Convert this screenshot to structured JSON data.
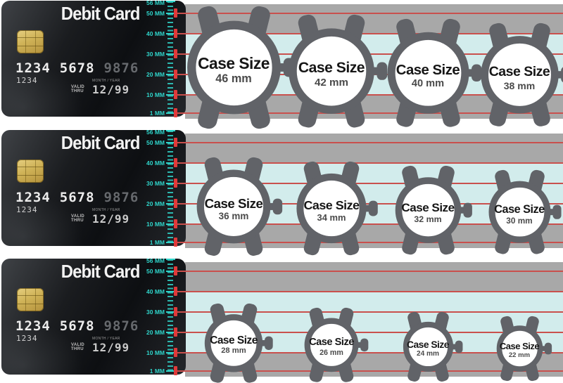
{
  "title": "Watch case size comparison against a debit card",
  "colors": {
    "band_gray": "#a8a8a8",
    "band_cyan": "#d2ecec",
    "line_red": "#c9504d",
    "marker_red": "#e03a3a",
    "ruler_cyan": "#2fd4ca",
    "watch_gray": "#616368",
    "card_black": "#17191c",
    "dial_white": "#ffffff"
  },
  "card": {
    "title": "Debit Card",
    "number_groups": [
      "1234",
      "5678",
      "9876"
    ],
    "sub_number": "1234",
    "valid_line1": "VALID",
    "valid_line2": "THRU",
    "month_year_label": "MONTH / YEAR",
    "expiry": "12/99"
  },
  "ruler": {
    "unit": "MM",
    "marks": [
      {
        "text": "56 MM",
        "mm": 56,
        "line": false
      },
      {
        "text": "50 MM",
        "mm": 50,
        "line": true
      },
      {
        "text": "40 MM",
        "mm": 40,
        "line": true
      },
      {
        "text": "30 MM",
        "mm": 30,
        "line": true
      },
      {
        "text": "20 MM",
        "mm": 20,
        "line": true
      },
      {
        "text": "10 MM",
        "mm": 10,
        "line": true
      },
      {
        "text": "1 MM",
        "mm": 1,
        "line": true
      }
    ]
  },
  "rows": [
    {
      "watches": [
        {
          "label": "Case Size",
          "size_label": "46 mm",
          "mm": 46
        },
        {
          "label": "Case Size",
          "size_label": "42 mm",
          "mm": 42
        },
        {
          "label": "Case Size",
          "size_label": "40 mm",
          "mm": 40
        },
        {
          "label": "Case Size",
          "size_label": "38 mm",
          "mm": 38
        }
      ]
    },
    {
      "watches": [
        {
          "label": "Case Size",
          "size_label": "36 mm",
          "mm": 36
        },
        {
          "label": "Case Size",
          "size_label": "34 mm",
          "mm": 34
        },
        {
          "label": "Case Size",
          "size_label": "32 mm",
          "mm": 32
        },
        {
          "label": "Case Size",
          "size_label": "30 mm",
          "mm": 30
        }
      ]
    },
    {
      "watches": [
        {
          "label": "Case Size",
          "size_label": "28 mm",
          "mm": 28
        },
        {
          "label": "Case Size",
          "size_label": "26 mm",
          "mm": 26
        },
        {
          "label": "Case Size",
          "size_label": "24 mm",
          "mm": 24
        },
        {
          "label": "Case Size",
          "size_label": "22 mm",
          "mm": 22
        }
      ]
    }
  ]
}
